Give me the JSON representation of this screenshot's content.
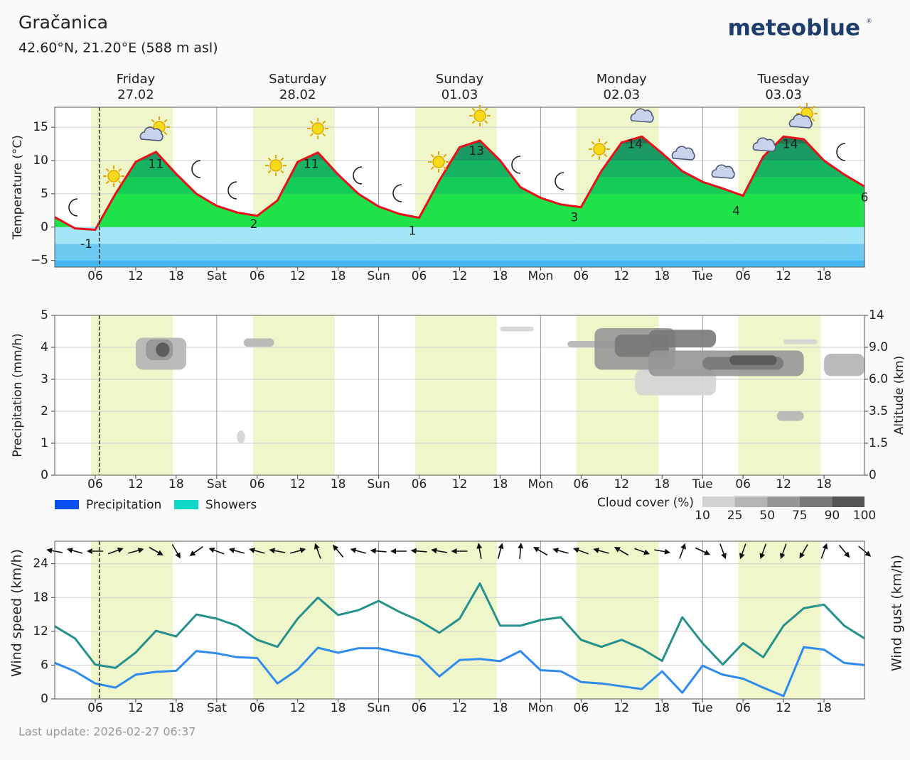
{
  "header": {
    "title": "Gračanica",
    "subtitle": "42.60°N, 21.20°E (588 m asl)",
    "logo": "meteoblue",
    "logo_mark": "®"
  },
  "footer": {
    "last_update": "Last update: 2026-02-27 06:37"
  },
  "chart_data": [
    {
      "type": "area",
      "ylabel": "Temperature (°C)",
      "days": [
        {
          "name": "Friday",
          "date": "27.02",
          "color": "#222222"
        },
        {
          "name": "Saturday",
          "date": "28.02",
          "color": "#e0202a"
        },
        {
          "name": "Sunday",
          "date": "01.03",
          "color": "#e0202a"
        },
        {
          "name": "Monday",
          "date": "02.03",
          "color": "#222222"
        },
        {
          "name": "Tuesday",
          "date": "03.03",
          "color": "#222222"
        }
      ],
      "xlim": [
        0,
        120
      ],
      "xticks": [
        {
          "value": 6,
          "label": "06"
        },
        12,
        18,
        {
          "value": 24,
          "label": "Sat"
        },
        {
          "value": 30,
          "label": "06"
        },
        {
          "value": 36,
          "label": "12"
        },
        {
          "value": 42,
          "label": "18"
        },
        {
          "value": 48,
          "label": "Sun"
        },
        {
          "value": 54,
          "label": "06"
        },
        {
          "value": 60,
          "label": "12"
        },
        {
          "value": 66,
          "label": "18"
        },
        {
          "value": 72,
          "label": "Mon"
        },
        {
          "value": 78,
          "label": "06"
        },
        {
          "value": 84,
          "label": "12"
        },
        {
          "value": 90,
          "label": "18"
        },
        {
          "value": 96,
          "label": "Tue"
        },
        {
          "value": 102,
          "label": "06"
        },
        {
          "value": 108,
          "label": "12"
        },
        {
          "value": 114,
          "label": "18"
        }
      ],
      "ylim": [
        -6,
        18
      ],
      "yticks": [
        {
          "value": -5,
          "label": "−5"
        },
        0,
        5,
        10,
        15
      ],
      "grid": true,
      "daylight": [
        [
          5.4,
          17.5
        ],
        [
          29.4,
          41.5
        ],
        [
          53.4,
          65.5
        ],
        [
          77.3,
          89.5
        ],
        [
          101.3,
          113.5
        ]
      ],
      "now": 6.6,
      "color": "#e8101a",
      "color_scale": [
        {
          "value": -6,
          "color": "#45b6ef"
        },
        {
          "value": -5,
          "color": "#6ccaf2"
        },
        {
          "value": -2.5,
          "color": "#a3e6f7"
        },
        {
          "value": 0,
          "color": "#1fe24a"
        },
        {
          "value": 5,
          "color": "#12cc56"
        },
        {
          "value": 7.5,
          "color": "#14b462"
        },
        {
          "value": 10,
          "color": "#1a9a62"
        },
        {
          "value": 12.5,
          "color": "#1f7850"
        }
      ],
      "x": [
        0,
        3,
        6,
        9,
        12,
        15,
        18,
        21,
        24,
        27,
        30,
        33,
        36,
        39,
        42,
        45,
        48,
        51,
        54,
        57,
        60,
        63,
        66,
        69,
        72,
        75,
        78,
        81,
        84,
        87,
        90,
        93,
        96,
        99,
        102,
        105,
        108,
        111,
        114,
        117,
        120
      ],
      "values": [
        1.5,
        -0.2,
        -0.4,
        5.0,
        9.8,
        11.3,
        8.0,
        5.0,
        3.2,
        2.2,
        1.7,
        4.0,
        9.8,
        11.2,
        7.9,
        5.0,
        3.1,
        2.0,
        1.4,
        7.0,
        12.0,
        13.0,
        10.0,
        6.0,
        4.4,
        3.4,
        3.0,
        8.4,
        12.7,
        13.6,
        11.1,
        8.4,
        6.8,
        5.8,
        4.7,
        10.6,
        13.6,
        13.2,
        10.0,
        7.9,
        6.1
      ],
      "extremes": {
        "x": [
          4.7,
          15,
          29.5,
          38,
          53,
          62.5,
          77,
          86,
          101,
          109,
          120
        ],
        "values": [
          -1,
          11,
          2,
          11,
          1,
          13,
          3,
          14,
          4,
          14,
          6
        ]
      }
    },
    {
      "type": "bar",
      "ylabel": "Precipitation (mm/h)",
      "y2label": "Altitude (km)",
      "xlim": [
        0,
        120
      ],
      "xticks": [
        {
          "value": 6,
          "label": "06"
        },
        12,
        18,
        {
          "value": 24,
          "label": "Sat"
        },
        {
          "value": 30,
          "label": "06"
        },
        {
          "value": 36,
          "label": "12"
        },
        {
          "value": 42,
          "label": "18"
        },
        {
          "value": 48,
          "label": "Sun"
        },
        {
          "value": 54,
          "label": "06"
        },
        {
          "value": 60,
          "label": "12"
        },
        {
          "value": 66,
          "label": "18"
        },
        {
          "value": 72,
          "label": "Mon"
        },
        {
          "value": 78,
          "label": "06"
        },
        {
          "value": 84,
          "label": "12"
        },
        {
          "value": 90,
          "label": "18"
        },
        {
          "value": 96,
          "label": "Tue"
        },
        {
          "value": 102,
          "label": "06"
        },
        {
          "value": 108,
          "label": "12"
        },
        {
          "value": 114,
          "label": "18"
        }
      ],
      "ylim": [
        0,
        5
      ],
      "yticks": [
        0,
        1,
        2,
        3,
        4,
        5
      ],
      "y2lim": [
        0,
        14
      ],
      "y2ticks": [
        0,
        1.5,
        3.5,
        {
          "value": 6,
          "label": "6.0"
        },
        {
          "value": 9,
          "label": "9.0"
        },
        14
      ],
      "grid": true,
      "x": [
        0,
        3,
        6,
        9,
        12,
        15,
        18,
        21,
        24,
        27,
        30,
        33,
        36,
        39,
        42,
        45,
        48,
        51,
        54,
        57,
        60,
        63,
        66,
        69,
        72,
        75,
        78,
        81,
        84,
        87,
        90,
        93,
        96,
        99,
        102,
        105,
        108,
        111,
        114,
        117,
        120
      ],
      "series": [
        {
          "name": "Precipitation",
          "color": "#0a50f0",
          "values": [
            0,
            0,
            0,
            0,
            0,
            0,
            0,
            0,
            0,
            0,
            0,
            0,
            0,
            0,
            0,
            0,
            0,
            0,
            0,
            0,
            0,
            0,
            0,
            0,
            0,
            0,
            0,
            0,
            0,
            0,
            0,
            0,
            0,
            0,
            0,
            0,
            0,
            0,
            0,
            0,
            0
          ]
        },
        {
          "name": "Showers",
          "color": "#10d8c8",
          "values": [
            0,
            0,
            0,
            0,
            0,
            0,
            0,
            0,
            0,
            0,
            0,
            0,
            0,
            0,
            0,
            0,
            0,
            0,
            0,
            0,
            0,
            0,
            0,
            0,
            0,
            0,
            0,
            0,
            0,
            0,
            0,
            0,
            0,
            0,
            0,
            0,
            0,
            0,
            0,
            0,
            0
          ]
        }
      ],
      "cloud_cover": {
        "label": "Cloud cover (%)",
        "ticks": [
          10,
          25,
          50,
          75,
          90,
          100
        ],
        "colors": [
          "#d4d4d4",
          "#b4b4b4",
          "#969696",
          "#787878",
          "#555555"
        ],
        "blobs": [
          {
            "x0": 12,
            "x1": 19.5,
            "y0": 3.3,
            "y1": 4.3,
            "cover": 50
          },
          {
            "x0": 13.5,
            "x1": 17.5,
            "y0": 3.6,
            "y1": 4.25,
            "cover": 75
          },
          {
            "x0": 15,
            "x1": 17,
            "y0": 3.7,
            "y1": 4.15,
            "cover": 100
          },
          {
            "x0": 28,
            "x1": 32.5,
            "y0": 4.02,
            "y1": 4.28,
            "cover": 50
          },
          {
            "x0": 27,
            "x1": 28.2,
            "y0": 1.0,
            "y1": 1.4,
            "cover": 25
          },
          {
            "x0": 66,
            "x1": 71,
            "y0": 4.5,
            "y1": 4.65,
            "cover": 25
          },
          {
            "x0": 76,
            "x1": 84,
            "y0": 4.0,
            "y1": 4.2,
            "cover": 50
          },
          {
            "x0": 80,
            "x1": 92,
            "y0": 3.3,
            "y1": 4.6,
            "cover": 75
          },
          {
            "x0": 83,
            "x1": 91,
            "y0": 3.7,
            "y1": 4.4,
            "cover": 90
          },
          {
            "x0": 88,
            "x1": 98,
            "y0": 4.0,
            "y1": 4.55,
            "cover": 90
          },
          {
            "x0": 86,
            "x1": 98,
            "y0": 2.5,
            "y1": 3.3,
            "cover": 25
          },
          {
            "x0": 88,
            "x1": 111,
            "y0": 3.1,
            "y1": 3.9,
            "cover": 75
          },
          {
            "x0": 96,
            "x1": 108,
            "y0": 3.3,
            "y1": 3.7,
            "cover": 90
          },
          {
            "x0": 100,
            "x1": 107,
            "y0": 3.45,
            "y1": 3.75,
            "cover": 100
          },
          {
            "x0": 107,
            "x1": 111,
            "y0": 1.7,
            "y1": 2.0,
            "cover": 50
          },
          {
            "x0": 108,
            "x1": 113,
            "y0": 4.1,
            "y1": 4.25,
            "cover": 25
          },
          {
            "x0": 114,
            "x1": 120,
            "y0": 3.1,
            "y1": 3.8,
            "cover": 50
          }
        ]
      }
    },
    {
      "type": "line",
      "xlim": [
        0,
        120
      ],
      "xticks": [
        {
          "value": 6,
          "label": "06"
        },
        12,
        18,
        {
          "value": 24,
          "label": "Sat"
        },
        {
          "value": 30,
          "label": "06"
        },
        {
          "value": 36,
          "label": "12"
        },
        {
          "value": 42,
          "label": "18"
        },
        {
          "value": 48,
          "label": "Sun"
        },
        {
          "value": 54,
          "label": "06"
        },
        {
          "value": 60,
          "label": "12"
        },
        {
          "value": 66,
          "label": "18"
        },
        {
          "value": 72,
          "label": "Mon"
        },
        {
          "value": 78,
          "label": "06"
        },
        {
          "value": 84,
          "label": "12"
        },
        {
          "value": 90,
          "label": "18"
        },
        {
          "value": 96,
          "label": "Tue"
        },
        {
          "value": 102,
          "label": "06"
        },
        {
          "value": 108,
          "label": "12"
        },
        {
          "value": 114,
          "label": "18"
        }
      ],
      "ylim": [
        0,
        28
      ],
      "yticks": [
        0,
        6,
        12,
        18,
        24
      ],
      "y2lim": [
        0,
        28
      ],
      "grid": true,
      "x": [
        0,
        3,
        6,
        9,
        12,
        15,
        18,
        21,
        24,
        27,
        30,
        33,
        36,
        39,
        42,
        45,
        48,
        51,
        54,
        57,
        60,
        63,
        66,
        69,
        72,
        75,
        78,
        81,
        84,
        87,
        90,
        93,
        96,
        99,
        102,
        105,
        108,
        111,
        114,
        117,
        120
      ],
      "series": [
        {
          "name": "Wind speed (km/h)",
          "color": "#2e8cf0",
          "values": [
            6.4,
            4.9,
            2.75,
            2.0,
            4.3,
            4.8,
            5.0,
            8.5,
            8.1,
            7.4,
            7.25,
            2.75,
            5.2,
            9.1,
            8.2,
            9.0,
            9.0,
            8.2,
            7.5,
            4.0,
            6.9,
            7.1,
            6.7,
            8.5,
            5.1,
            4.9,
            3.0,
            2.75,
            2.25,
            1.75,
            4.9,
            1.1,
            5.9,
            4.3,
            3.6,
            2.0,
            0.5,
            9.2,
            8.75,
            6.4,
            6.0
          ]
        },
        {
          "name": "Wind gust (km/h)",
          "color": "#25918c",
          "axis": "y2",
          "values": [
            12.9,
            10.75,
            6.1,
            5.5,
            8.25,
            12.1,
            11.1,
            15.0,
            14.25,
            13.0,
            10.5,
            9.25,
            14.25,
            18.0,
            14.9,
            15.75,
            17.4,
            15.5,
            13.9,
            11.75,
            14.25,
            20.5,
            13.0,
            13.0,
            14.0,
            14.5,
            10.5,
            9.25,
            10.5,
            8.9,
            6.75,
            14.5,
            9.9,
            6.1,
            9.9,
            7.4,
            13.0,
            16.1,
            16.75,
            13.0,
            10.75
          ]
        }
      ],
      "wind_direction": [
        280,
        285,
        270,
        70,
        75,
        120,
        150,
        235,
        290,
        285,
        285,
        280,
        75,
        340,
        320,
        285,
        275,
        270,
        275,
        280,
        270,
        350,
        15,
        5,
        300,
        285,
        290,
        285,
        300,
        110,
        100,
        20,
        115,
        160,
        200,
        200,
        200,
        210,
        20,
        140,
        130
      ]
    }
  ]
}
